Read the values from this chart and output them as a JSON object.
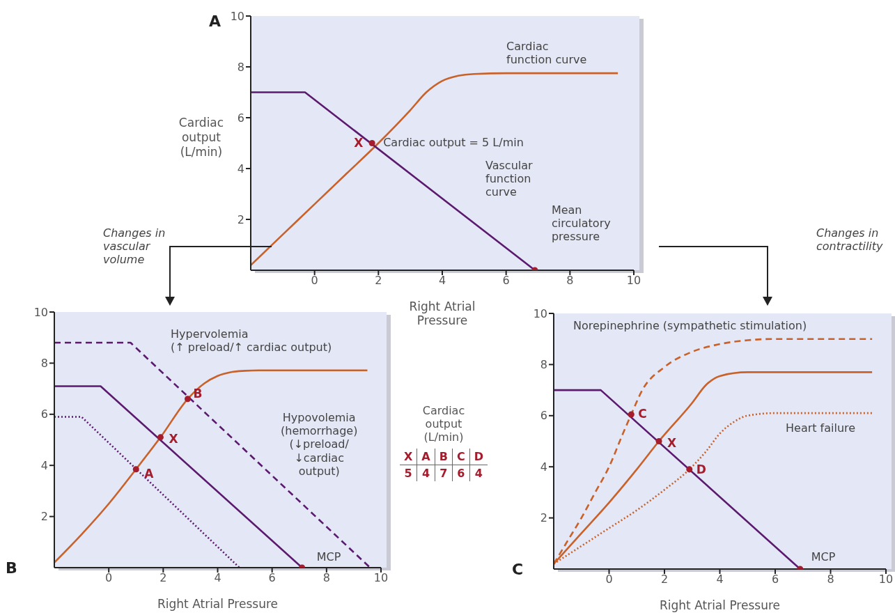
{
  "chart_data": [
    {
      "type": "line",
      "title": "A",
      "xlabel": "Right Atrial\nPressure",
      "ylabel": "Cardiac\noutput\n(L/min)",
      "xlim": [
        -2,
        10
      ],
      "ylim": [
        0,
        10
      ],
      "xticks": [
        0,
        2,
        4,
        6,
        8,
        10
      ],
      "yticks": [
        2,
        4,
        6,
        8,
        10
      ],
      "series": [
        {
          "type": "line",
          "color": "#c8612a",
          "line_style": "solid",
          "x": [
            -2,
            -1,
            0,
            1,
            2,
            3,
            3.5,
            4,
            4.5,
            5,
            6,
            9.5
          ],
          "values": [
            0.2,
            1.4,
            2.6,
            3.8,
            5.0,
            6.3,
            7.0,
            7.45,
            7.65,
            7.72,
            7.75,
            7.75
          ]
        },
        {
          "type": "line",
          "color": "#5b1a6e",
          "line_style": "solid",
          "x": [
            -2,
            -0.3,
            6.9
          ],
          "values": [
            7,
            7,
            0
          ]
        },
        {
          "type": "scatter",
          "color": "#a51d2d",
          "marker": "circle",
          "x": [
            1.8,
            6.9
          ],
          "values": [
            5,
            0
          ]
        }
      ],
      "annotations": [
        "Cardiac\nfunction curve",
        "Vascular\nfunction\ncurve",
        "Changes in\nvascular\nvolume",
        "Changes in\ncontractility",
        {
          "text": "X",
          "x": 1.8,
          "y": 5
        },
        {
          "text": "Cardiac output = 5 L/min",
          "x": 1.8,
          "y": 5
        },
        {
          "text": "Mean\ncirculatory\npressure",
          "x": 6.9,
          "y": 0
        }
      ]
    },
    {
      "type": "line",
      "title": "B",
      "xlabel": "Right Atrial Pressure",
      "xlim": [
        -2,
        10
      ],
      "ylim": [
        0,
        10
      ],
      "xticks": [
        0,
        2,
        4,
        6,
        8,
        10
      ],
      "yticks": [
        2,
        4,
        6,
        8,
        10
      ],
      "series": [
        {
          "type": "line",
          "color": "#c8612a",
          "line_style": "solid",
          "x": [
            -2,
            -1,
            0,
            1,
            1.9,
            2.9,
            3.5,
            4,
            4.5,
            5,
            5.5,
            9.5
          ],
          "values": [
            0.2,
            1.3,
            2.5,
            3.85,
            5.1,
            6.6,
            7.2,
            7.5,
            7.65,
            7.7,
            7.72,
            7.72
          ]
        },
        {
          "type": "line",
          "color": "#5b1a6e",
          "line_style": "solid",
          "x": [
            -2,
            -0.3,
            7.1
          ],
          "values": [
            7.1,
            7.1,
            0
          ]
        },
        {
          "type": "line",
          "color": "#5b1a6e",
          "line_style": "dashed",
          "x": [
            -2,
            0.8,
            9.6
          ],
          "values": [
            8.8,
            8.8,
            0
          ]
        },
        {
          "type": "line",
          "color": "#5b1a6e",
          "line_style": "dotted",
          "x": [
            -2,
            -1.0,
            4.8
          ],
          "values": [
            5.9,
            5.9,
            0
          ]
        },
        {
          "type": "scatter",
          "color": "#a51d2d",
          "marker": "circle",
          "x": [
            1.0,
            1.9,
            2.9,
            7.1
          ],
          "values": [
            3.85,
            5.1,
            6.6,
            0
          ]
        }
      ],
      "annotations": [
        "Hypervolemia\n(↑ preload/↑ cardiac output)",
        "Hypovolemia\n(hemorrhage)\n(↓preload/\n↓cardiac\noutput)",
        {
          "text": "MCP",
          "x": 7.1,
          "y": 0
        },
        {
          "text": "A",
          "x": 1.0,
          "y": 3.85
        },
        {
          "text": "X",
          "x": 1.9,
          "y": 5.1
        },
        {
          "text": "B",
          "x": 2.9,
          "y": 6.6
        }
      ]
    },
    {
      "type": "line",
      "title": "C",
      "xlabel": "Right Atrial Pressure",
      "xlim": [
        -2,
        10
      ],
      "ylim": [
        0,
        10
      ],
      "xticks": [
        0,
        2,
        4,
        6,
        8,
        10
      ],
      "yticks": [
        2,
        4,
        6,
        8,
        10
      ],
      "series": [
        {
          "type": "line",
          "color": "#c8612a",
          "line_style": "solid",
          "x": [
            -2,
            -1,
            0,
            1,
            1.8,
            3,
            3.5,
            4,
            5,
            9.5
          ],
          "values": [
            0.2,
            1.4,
            2.6,
            3.9,
            5.0,
            6.5,
            7.2,
            7.55,
            7.7,
            7.7
          ]
        },
        {
          "type": "line",
          "color": "#c8612a",
          "line_style": "dashed",
          "x": [
            -2,
            -1.5,
            -1,
            -0.5,
            0,
            0.5,
            0.8,
            1.2,
            2,
            3,
            4,
            5,
            6,
            9.5
          ],
          "values": [
            0.2,
            1.1,
            2.0,
            3.0,
            4.0,
            5.3,
            6.05,
            7.0,
            7.9,
            8.5,
            8.8,
            8.95,
            9.0,
            9.0
          ]
        },
        {
          "type": "line",
          "color": "#c8612a",
          "line_style": "dotted",
          "x": [
            -2,
            0,
            1,
            2,
            2.9,
            3.5,
            4,
            4.5,
            5,
            6,
            9.5
          ],
          "values": [
            0.2,
            1.6,
            2.3,
            3.1,
            3.9,
            4.6,
            5.3,
            5.75,
            6.0,
            6.1,
            6.1
          ]
        },
        {
          "type": "line",
          "color": "#5b1a6e",
          "line_style": "solid",
          "x": [
            -2,
            -0.3,
            6.9
          ],
          "values": [
            7,
            7,
            0
          ]
        },
        {
          "type": "scatter",
          "color": "#a51d2d",
          "marker": "circle",
          "x": [
            0.8,
            1.8,
            2.9,
            6.9
          ],
          "values": [
            6.05,
            5.0,
            3.9,
            0
          ]
        }
      ],
      "annotations": [
        "Norepinephrine (sympathetic stimulation)",
        "Heart failure",
        {
          "text": "MCP",
          "x": 6.9,
          "y": 0
        },
        {
          "text": "C",
          "x": 0.8,
          "y": 6.05
        },
        {
          "text": "X",
          "x": 1.8,
          "y": 5.0
        },
        {
          "text": "D",
          "x": 2.9,
          "y": 3.9
        }
      ]
    },
    {
      "type": "other",
      "title": "Cardiac\noutput\n(L/min)",
      "categories": [
        "X",
        "A",
        "B",
        "C",
        "D"
      ],
      "values": [
        5,
        4,
        7,
        6,
        4
      ],
      "data_labels": true
    }
  ]
}
